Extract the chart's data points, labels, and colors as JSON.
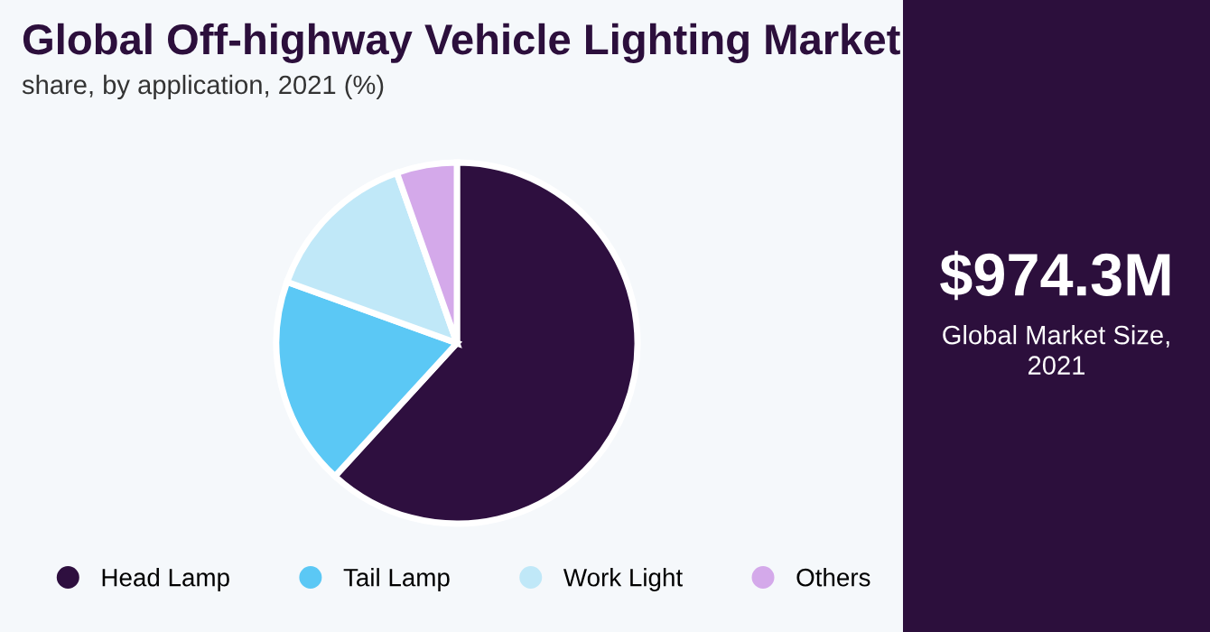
{
  "chart_data": {
    "type": "pie",
    "title": "Global Off-highway Vehicle Lighting Market",
    "subtitle": "share, by application, 2021 (%)",
    "categories": [
      "Head Lamp",
      "Tail Lamp",
      "Work Light",
      "Others"
    ],
    "values": [
      61.8,
      18.7,
      14.1,
      5.4
    ],
    "colors": [
      "#2e0f3f",
      "#5bc8f5",
      "#c0e8f8",
      "#d4a9ea"
    ],
    "legend": "bottom",
    "annotations": [
      "$974.3M",
      "Global Market Size,\n2021"
    ]
  }
}
